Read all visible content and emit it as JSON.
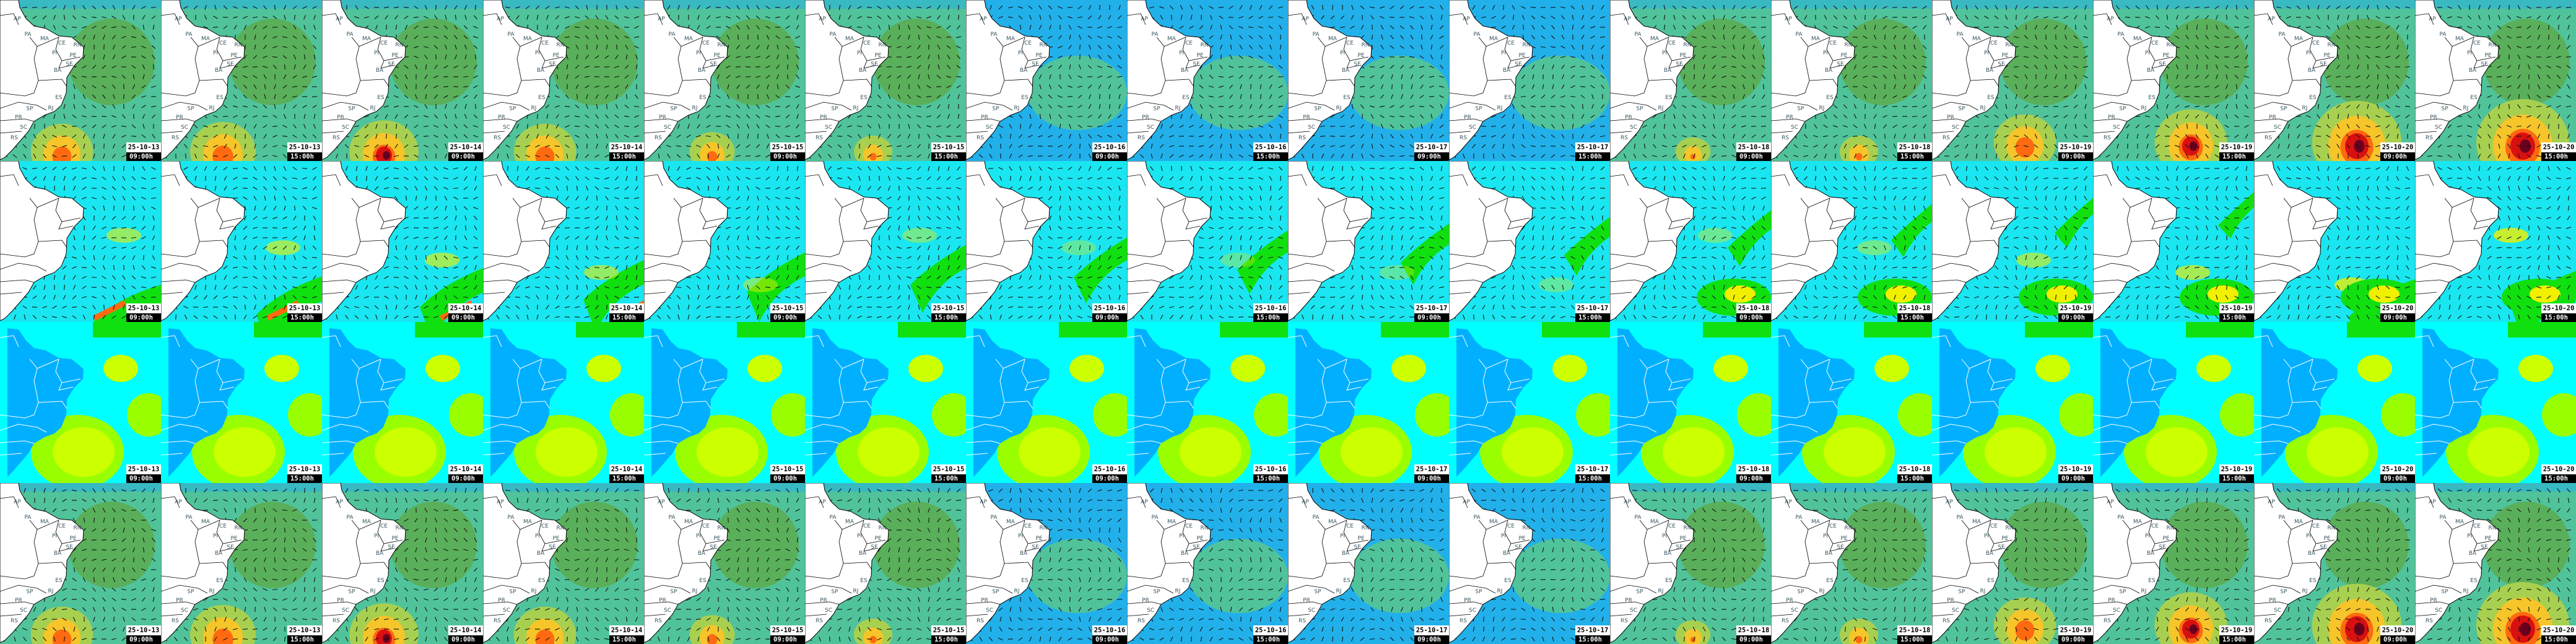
{
  "frames": [
    {
      "date": "25-10-13",
      "time": "09:00h"
    },
    {
      "date": "25-10-13",
      "time": "15:00h"
    },
    {
      "date": "25-10-14",
      "time": "09:00h"
    },
    {
      "date": "25-10-14",
      "time": "15:00h"
    },
    {
      "date": "25-10-15",
      "time": "09:00h"
    },
    {
      "date": "25-10-15",
      "time": "15:00h"
    },
    {
      "date": "25-10-16",
      "time": "09:00h"
    },
    {
      "date": "25-10-16",
      "time": "15:00h"
    },
    {
      "date": "25-10-17",
      "time": "09:00h"
    },
    {
      "date": "25-10-17",
      "time": "15:00h"
    },
    {
      "date": "25-10-18",
      "time": "09:00h"
    },
    {
      "date": "25-10-18",
      "time": "15:00h"
    },
    {
      "date": "25-10-19",
      "time": "09:00h"
    },
    {
      "date": "25-10-19",
      "time": "15:00h"
    },
    {
      "date": "25-10-20",
      "time": "09:00h"
    },
    {
      "date": "25-10-20",
      "time": "15:00h"
    }
  ],
  "rows": [
    {
      "style": "wind-green",
      "show_states": true
    },
    {
      "style": "wave-cyan",
      "show_states": false
    },
    {
      "style": "wide-cyan",
      "show_states": false
    },
    {
      "style": "wind-green",
      "show_states": true
    }
  ],
  "state_labels": [
    "AP",
    "PA",
    "MA",
    "CE",
    "RN",
    "PI",
    "PE",
    "SE",
    "BA",
    "ES",
    "SP",
    "RJ",
    "PR",
    "SC",
    "RS"
  ],
  "colors": {
    "land": "#ffffff",
    "sea_green": "#5aaf5a",
    "sea_teal": "#50c39b",
    "sea_blue": "#22b0ea",
    "hot_yellow": "#f5c52a",
    "hot_orange": "#ff6a10",
    "hot_red": "#d81010",
    "hot_dark": "#6a0020",
    "wave_cyan": "#19e6f0",
    "wave_green": "#10e010",
    "wave_yellow": "#f0f000",
    "wide_cyan": "#00ffff",
    "wide_blue": "#00b0ff",
    "wide_lime": "#ccff00"
  }
}
